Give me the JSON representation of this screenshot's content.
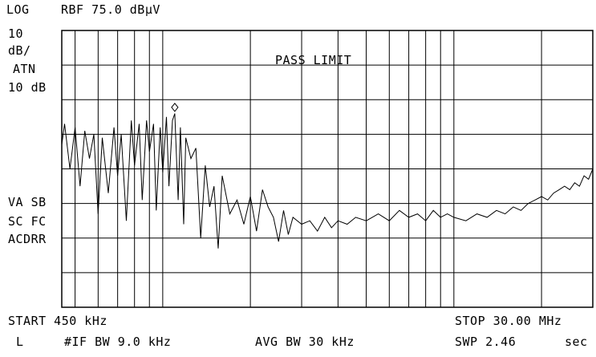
{
  "header": {
    "scale_mode": "LOG",
    "ref_level": "RBF 75.0 dBµV"
  },
  "left_panel": {
    "div_value": "10",
    "div_unit": "dB/",
    "atn_label": "ATN",
    "atn_value": "10 dB",
    "status_1": "VA SB",
    "status_2": "SC FC",
    "status_3": "ACDRR"
  },
  "annotation": {
    "limit_text": "PASS LIMIT"
  },
  "footer": {
    "start": "START 450 kHz",
    "stop": "STOP 30.00 MHz",
    "indicator": "L",
    "if_bw": "#IF BW 9.0 kHz",
    "avg_bw": "AVG BW 30 kHz",
    "sweep_time": "SWP 2.46",
    "sweep_unit": "sec"
  },
  "colors": {
    "background": "#ffffff",
    "foreground": "#000000"
  },
  "chart_data": {
    "type": "line",
    "x_scale": "log",
    "x_unit": "Hz",
    "xlim": [
      450000,
      30000000
    ],
    "y_unit": "dBµV",
    "ylim": [
      -5,
      75
    ],
    "y_ref": 75,
    "y_div": 10,
    "grid": true,
    "marker": {
      "x": 1100000,
      "y": 51.4,
      "shape": "diamond"
    },
    "series": [
      {
        "x": [
          450000,
          460000,
          480000,
          500000,
          520000,
          540000,
          560000,
          580000,
          600000,
          620000,
          650000,
          680000,
          700000,
          720000,
          750000,
          780000,
          800000,
          830000,
          850000,
          880000,
          900000,
          930000,
          950000,
          980000,
          1000000,
          1030000,
          1050000,
          1080000,
          1100000,
          1130000,
          1150000,
          1180000,
          1200000,
          1250000,
          1300000,
          1350000,
          1400000,
          1450000,
          1500000,
          1550000,
          1600000,
          1700000,
          1800000,
          1900000,
          2000000,
          2100000,
          2200000,
          2300000,
          2400000,
          2500000,
          2600000,
          2700000,
          2800000,
          3000000,
          3200000,
          3400000,
          3600000,
          3800000,
          4000000,
          4300000,
          4600000,
          5000000,
          5500000,
          6000000,
          6500000,
          7000000,
          7500000,
          8000000,
          8500000,
          9000000,
          9500000,
          10000000,
          11000000,
          12000000,
          13000000,
          14000000,
          15000000,
          16000000,
          17000000,
          18000000,
          19000000,
          20000000,
          21000000,
          22000000,
          23000000,
          24000000,
          25000000,
          26000000,
          27000000,
          28000000,
          29000000,
          30000000
        ],
        "y": [
          42,
          48,
          35,
          47,
          30,
          46,
          38,
          45,
          22,
          44,
          28,
          47,
          33,
          45,
          20,
          49,
          36,
          48,
          26,
          49,
          40,
          48,
          23,
          47,
          34,
          50,
          30,
          49,
          51,
          26,
          47,
          19,
          44,
          38,
          41,
          15,
          36,
          24,
          30,
          12,
          33,
          22,
          26,
          19,
          27,
          17,
          29,
          24,
          21,
          14,
          23,
          16,
          21,
          19,
          20,
          17,
          21,
          18,
          20,
          19,
          21,
          20,
          22,
          20,
          23,
          21,
          22,
          20,
          23,
          21,
          22,
          21,
          20,
          22,
          21,
          23,
          22,
          24,
          23,
          25,
          26,
          27,
          26,
          28,
          29,
          30,
          29,
          31,
          30,
          33,
          32,
          35
        ]
      }
    ]
  }
}
